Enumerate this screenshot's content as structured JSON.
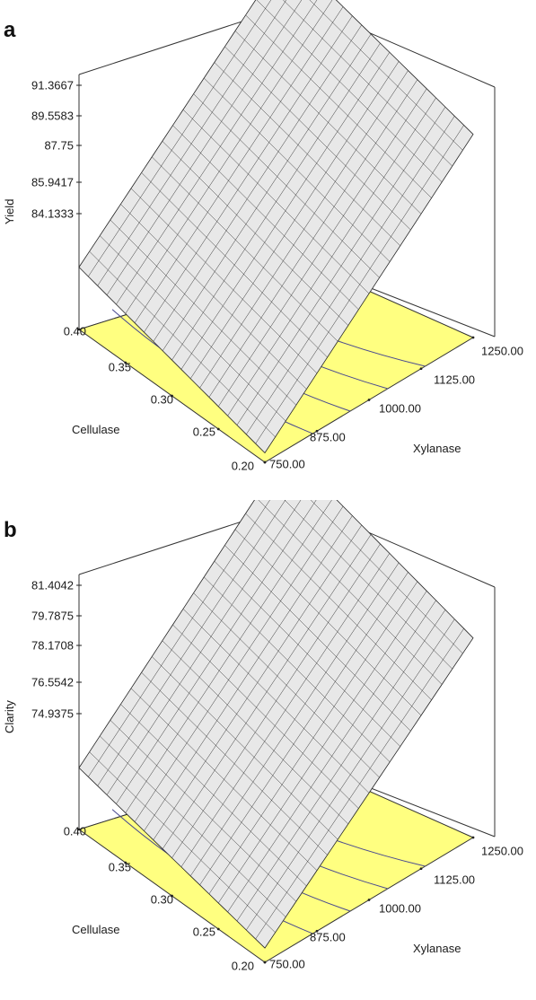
{
  "charts": [
    {
      "letter": "a",
      "zlabel": "Yield",
      "xlabel": "Cellulase",
      "ylabel": "Xylanase",
      "zticks": [
        "91.3667",
        "89.5583",
        "87.75",
        "85.9417",
        "84.1333"
      ],
      "xticks": [
        "0.40",
        "0.35",
        "0.30",
        "0.25",
        "0.20"
      ],
      "yticks": [
        "750.00",
        "875.00",
        "1000.00",
        "1125.00",
        "1250.00"
      ]
    },
    {
      "letter": "b",
      "zlabel": "Clarity",
      "xlabel": "Cellulase",
      "ylabel": "Xylanase",
      "zticks": [
        "81.4042",
        "79.7875",
        "78.1708",
        "76.5542",
        "74.9375"
      ],
      "xticks": [
        "0.40",
        "0.35",
        "0.30",
        "0.25",
        "0.20"
      ],
      "yticks": [
        "750.00",
        "875.00",
        "1000.00",
        "1125.00",
        "1250.00"
      ]
    }
  ],
  "chart_data": [
    {
      "type": "surface",
      "title": "",
      "xlabel": "Cellulase",
      "ylabel": "Xylanase",
      "zlabel": "Yield",
      "x_range": [
        0.2,
        0.4
      ],
      "y_range": [
        750.0,
        1250.0
      ],
      "z_range": [
        84.1333,
        91.3667
      ],
      "corners": [
        {
          "cellulase": 0.2,
          "xylanase": 750.0,
          "z": 84.4
        },
        {
          "cellulase": 0.4,
          "xylanase": 750.0,
          "z": 85.9
        },
        {
          "cellulase": 0.2,
          "xylanase": 1250.0,
          "z": 89.9
        },
        {
          "cellulase": 0.4,
          "xylanase": 1250.0,
          "z": 91.3
        }
      ],
      "contour_lines": 4,
      "colors": {
        "surface": "#e8e8e8",
        "base": "#ffff80",
        "contour": "#4a4a90"
      }
    },
    {
      "type": "surface",
      "title": "",
      "xlabel": "Cellulase",
      "ylabel": "Xylanase",
      "zlabel": "Clarity",
      "x_range": [
        0.2,
        0.4
      ],
      "y_range": [
        750.0,
        1250.0
      ],
      "z_range": [
        74.9375,
        81.4042
      ],
      "corners": [
        {
          "cellulase": 0.2,
          "xylanase": 750.0,
          "z": 75.3
        },
        {
          "cellulase": 0.4,
          "xylanase": 750.0,
          "z": 76.5
        },
        {
          "cellulase": 0.2,
          "xylanase": 1250.0,
          "z": 80.0
        },
        {
          "cellulase": 0.4,
          "xylanase": 1250.0,
          "z": 81.4
        }
      ],
      "contour_lines": 4,
      "colors": {
        "surface": "#e8e8e8",
        "base": "#ffff80",
        "contour": "#4a4a90"
      }
    }
  ]
}
